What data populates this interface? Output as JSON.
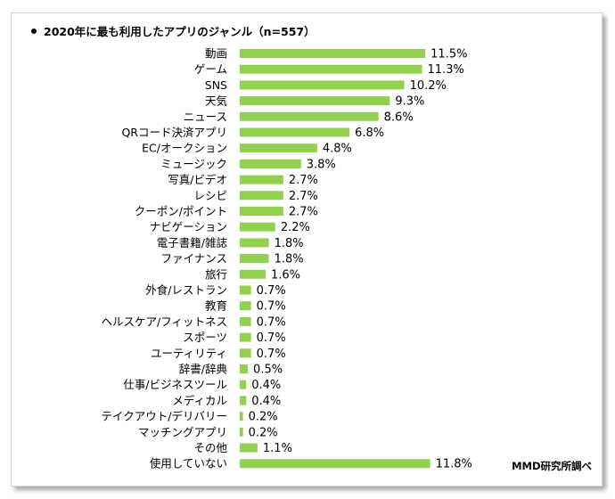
{
  "chart_data": {
    "type": "bar",
    "orientation": "horizontal",
    "title": "2020年に最も利用したアプリのジャンル（n=557）",
    "source": "MMD研究所調べ",
    "xlabel": "",
    "ylabel": "",
    "xlim": [
      0,
      12
    ],
    "grid": false,
    "legend": "none",
    "bar_color": "#92d050",
    "categories": [
      "動画",
      "ゲーム",
      "SNS",
      "天気",
      "ニュース",
      "QRコード決済アプリ",
      "EC/オークション",
      "ミュージック",
      "写真/ビデオ",
      "レシピ",
      "クーポン/ポイント",
      "ナビゲーション",
      "電子書籍/雑誌",
      "ファイナンス",
      "旅行",
      "外食/レストラン",
      "教育",
      "ヘルスケア/フィットネス",
      "スポーツ",
      "ユーティリティ",
      "辞書/辞典",
      "仕事/ビジネスツール",
      "メディカル",
      "テイクアウト/デリバリー",
      "マッチングアプリ",
      "その他",
      "使用していない"
    ],
    "values": [
      11.5,
      11.3,
      10.2,
      9.3,
      8.6,
      6.8,
      4.8,
      3.8,
      2.7,
      2.7,
      2.7,
      2.2,
      1.8,
      1.8,
      1.6,
      0.7,
      0.7,
      0.7,
      0.7,
      0.7,
      0.5,
      0.4,
      0.4,
      0.2,
      0.2,
      1.1,
      11.8
    ],
    "value_labels": [
      "11.5%",
      "11.3%",
      "10.2%",
      "9.3%",
      "8.6%",
      "6.8%",
      "4.8%",
      "3.8%",
      "2.7%",
      "2.7%",
      "2.7%",
      "2.2%",
      "1.8%",
      "1.8%",
      "1.6%",
      "0.7%",
      "0.7%",
      "0.7%",
      "0.7%",
      "0.7%",
      "0.5%",
      "0.4%",
      "0.4%",
      "0.2%",
      "0.2%",
      "1.1%",
      "11.8%"
    ]
  }
}
